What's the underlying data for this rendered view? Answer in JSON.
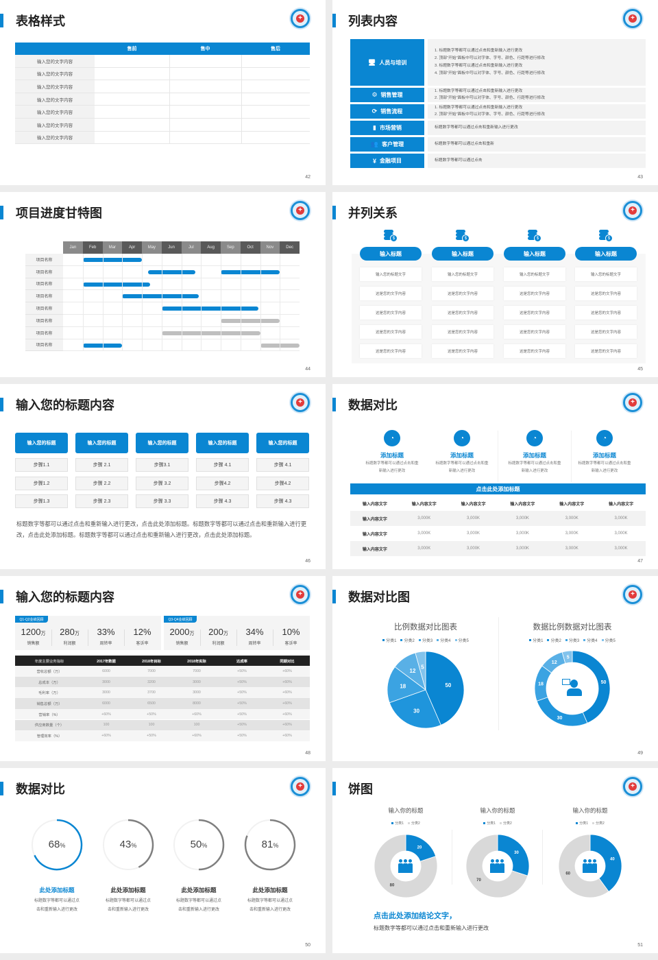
{
  "colors": {
    "accent": "#0a86d2",
    "gray": "#d9d9d9",
    "dark": "#222222"
  },
  "s42": {
    "title": "表格样式",
    "page": "42",
    "headers": [
      "",
      "售前",
      "售中",
      "售后"
    ],
    "rows": [
      "输入您的文字内容",
      "输入您的文字内容",
      "输入您的文字内容",
      "输入您的文字内容",
      "输入您的文字内容",
      "输入您的文字内容",
      "输入您的文字内容"
    ]
  },
  "s43": {
    "title": "列表内容",
    "page": "43",
    "items": [
      {
        "label": "人员与培训",
        "icon": "training-icon",
        "lines": [
          "1.  标题数字等都可以通过点击和重新输入进行更改",
          "2.  顶部“开始”面板中可以对字体、字号、颜色、行距等进行修改",
          "3.  标题数字等都可以通过点击和重新输入进行更改",
          "4.  顶部“开始”面板中可以对字体、字号、颜色、行距等进行修改"
        ]
      },
      {
        "label": "销售管理",
        "icon": "user-gear-icon",
        "lines": [
          "1.  标题数字等都可以通过点击和重新输入进行更改",
          "2.  顶部“开始”面板中可以对字体、字号、颜色、行距等进行修改"
        ]
      },
      {
        "label": "销售流程",
        "icon": "cycle-icon",
        "lines": [
          "1.  标题数字等都可以通过点击和重新输入进行更改",
          "2.  顶部“开始”面板中可以对字体、字号、颜色、行距等进行修改"
        ]
      },
      {
        "label": "市场营销",
        "icon": "bar-chart-icon",
        "lines": [
          "标题数字等都可以通过点击和重新输入进行更改"
        ]
      },
      {
        "label": "客户管理",
        "icon": "users-icon",
        "lines": [
          "标题数字等都可以通过点击和重新"
        ]
      },
      {
        "label": "金融项目",
        "icon": "money-hand-icon",
        "lines": [
          "标题数字等都可以通过点击"
        ]
      }
    ]
  },
  "s44": {
    "title": "项目进度甘特图",
    "page": "44",
    "months": [
      "Jan",
      "Feb",
      "Mar",
      "Apr",
      "May",
      "Jun",
      "Jul",
      "Aug",
      "Sep",
      "Oct",
      "Nov",
      "Dec"
    ],
    "rows": [
      {
        "label": "项目名称",
        "bars": [
          {
            "start": 1,
            "end": 4,
            "status": "active"
          }
        ]
      },
      {
        "label": "项目名称",
        "bars": [
          {
            "start": 4.3,
            "end": 6.7,
            "status": "active"
          },
          {
            "start": 8,
            "end": 11,
            "status": "active"
          }
        ]
      },
      {
        "label": "项目名称",
        "bars": [
          {
            "start": 1,
            "end": 4.4,
            "status": "active"
          }
        ]
      },
      {
        "label": "项目名称",
        "bars": [
          {
            "start": 3,
            "end": 6.9,
            "status": "active"
          }
        ]
      },
      {
        "label": "项目名称",
        "bars": [
          {
            "start": 5,
            "end": 9.9,
            "status": "active"
          }
        ]
      },
      {
        "label": "项目名称",
        "bars": [
          {
            "start": 8,
            "end": 11,
            "status": "planned"
          }
        ]
      },
      {
        "label": "项目名称",
        "bars": [
          {
            "start": 5,
            "end": 10,
            "status": "planned"
          }
        ]
      },
      {
        "label": "项目名称",
        "bars": [
          {
            "start": 1,
            "end": 3,
            "status": "active"
          },
          {
            "start": 10,
            "end": 12,
            "status": "planned"
          }
        ]
      }
    ]
  },
  "s45": {
    "title": "并列关系",
    "page": "45",
    "columns": [
      {
        "title": "输入标题",
        "cells": [
          "输入您的标题文字",
          "这是您的文字内容",
          "这是您的文字内容",
          "这是您的文字内容",
          "这是您的文字内容"
        ]
      },
      {
        "title": "输入标题",
        "cells": [
          "输入您的标题文字",
          "这是您的文字内容",
          "这是您的文字内容",
          "这是您的文字内容",
          "这是您的文字内容"
        ]
      },
      {
        "title": "输入标题",
        "cells": [
          "输入您的标题文字",
          "这是您的文字内容",
          "这是您的文字内容",
          "这是您的文字内容",
          "这是您的文字内容"
        ]
      },
      {
        "title": "输入标题",
        "cells": [
          "输入您的标题文字",
          "这是您的文字内容",
          "这是您的文字内容",
          "这是您的文字内容",
          "这是您的文字内容"
        ]
      }
    ]
  },
  "s46": {
    "title": "输入您的标题内容",
    "page": "46",
    "columns": [
      {
        "title": "输入您的标题",
        "steps": [
          "步骤1.1",
          "步骤1.2",
          "步骤1.3"
        ]
      },
      {
        "title": "输入您的标题",
        "steps": [
          "步骤 2.1",
          "步骤 2.2",
          "步骤 2.3"
        ]
      },
      {
        "title": "输入您的标题",
        "steps": [
          "步骤3.1",
          "步骤 3.2",
          "步骤 3.3"
        ]
      },
      {
        "title": "输入您的标题",
        "steps": [
          "步骤 4.1",
          "步骤4.2",
          "步骤 4.3"
        ]
      },
      {
        "title": "输入您的标题",
        "steps": [
          "步骤 4.1",
          "步骤4.2",
          "步骤 4.3"
        ]
      }
    ],
    "paragraph": "标题数字等都可以通过点击和重新输入进行更改，点击此处添加标题。标题数字等都可以通过点击和重新输入进行更改，点击此处添加标题。标题数字等都可以通过点击和重新输入进行更改，点击此处添加标题。"
  },
  "s47": {
    "title": "数据对比",
    "page": "47",
    "items": [
      {
        "title": "添加标题",
        "desc": "标题数字等都可以通过点击和重新输入进行更改"
      },
      {
        "title": "添加标题",
        "desc": "标题数字等都可以通过点击和重新输入进行更改"
      },
      {
        "title": "添加标题",
        "desc": "标题数字等都可以通过点击和重新输入进行更改"
      },
      {
        "title": "添加标题",
        "desc": "标题数字等都可以通过点击和重新输入进行更改"
      }
    ],
    "bar_title": "点击此处添加标题",
    "headers": [
      "输入内容文字",
      "输入内容文字",
      "输入内容文字",
      "输入内容文字",
      "输入内容文字",
      "输入内容文字"
    ],
    "rows": [
      [
        "输入内容文字",
        "3,000K",
        "3,000K",
        "3,000K",
        "3,000K",
        "3,000K"
      ],
      [
        "输入内容文字",
        "3,000K",
        "3,000K",
        "3,000K",
        "3,000K",
        "3,000K"
      ],
      [
        "输入内容文字",
        "3,000K",
        "3,000K",
        "3,000K",
        "3,000K",
        "3,000K"
      ]
    ]
  },
  "s48": {
    "title": "输入您的标题内容",
    "page": "48",
    "panels": [
      {
        "tag": "Q1-Q2业绩回顾",
        "stats": [
          {
            "value": "1200",
            "unit": "万",
            "label": "销售额"
          },
          {
            "value": "280",
            "unit": "万",
            "label": "利润额"
          },
          {
            "value": "33%",
            "unit": "",
            "label": "周转率"
          },
          {
            "value": "12%",
            "unit": "",
            "label": "客诉率"
          }
        ]
      },
      {
        "tag": "Q3-Q4业绩回顾",
        "stats": [
          {
            "value": "2000",
            "unit": "万",
            "label": "销售额"
          },
          {
            "value": "200",
            "unit": "万",
            "label": "利润额"
          },
          {
            "value": "34%",
            "unit": "",
            "label": "周转率"
          },
          {
            "value": "10%",
            "unit": "",
            "label": "客诉率"
          }
        ]
      }
    ],
    "headers": [
      "年度主要业务指标",
      "2017年数据",
      "2018年目标",
      "2018年实际",
      "达成率",
      "同期对比"
    ],
    "rows": [
      [
        "营收总额（万）",
        "6000",
        "7000",
        "7000",
        "+50%",
        "+60%"
      ],
      [
        "总成本（万）",
        "3000",
        "3200",
        "3000",
        "+50%",
        "+60%"
      ],
      [
        "毛利率（万）",
        "3000",
        "3700",
        "3000",
        "+50%",
        "+60%"
      ],
      [
        "销售总额（万）",
        "6000",
        "6500",
        "8000",
        "+50%",
        "+60%"
      ],
      [
        "营销率（%）",
        "+60%",
        "+50%",
        "+60%",
        "+50%",
        "+60%"
      ],
      [
        "供应商数量（个）",
        "100",
        "100",
        "100",
        "+50%",
        "+60%"
      ],
      [
        "管理效率（%）",
        "+60%",
        "+50%",
        "+60%",
        "+50%",
        "+60%"
      ]
    ]
  },
  "s49": {
    "title": "数据对比图",
    "page": "49"
  },
  "s50": {
    "title": "数据对比",
    "page": "50",
    "rings": [
      {
        "value": 68,
        "label": "68",
        "title": "此处添加标题",
        "desc": [
          "标题数字等都可以通过点",
          "击和重新输入进行更改"
        ],
        "highlight": true
      },
      {
        "value": 43,
        "label": "43",
        "title": "此处添加标题",
        "desc": [
          "标题数字等都可以通过点",
          "击和重新输入进行更改"
        ],
        "highlight": false
      },
      {
        "value": 50,
        "label": "50",
        "title": "此处添加标题",
        "desc": [
          "标题数字等都可以通过点",
          "击和重新输入进行更改"
        ],
        "highlight": false
      },
      {
        "value": 81,
        "label": "81",
        "title": "此处添加标题",
        "desc": [
          "标题数字等都可以通过点",
          "击和重新输入进行更改"
        ],
        "highlight": false
      }
    ],
    "unit": "%"
  },
  "s51": {
    "title": "饼图",
    "page": "51",
    "conclusion_title": "点击此处添加结论文字，",
    "conclusion_text": "标题数字等都可以通过点击和重新输入进行更改"
  },
  "chart_data": [
    {
      "type": "pie",
      "title": "比例数据对比图表",
      "legend": "top",
      "categories": [
        "分类1",
        "分类2",
        "分类3",
        "分类4",
        "分类5"
      ],
      "values": [
        50,
        30,
        18,
        12,
        5
      ],
      "colors": [
        "#0a86d2",
        "#1f95dc",
        "#3ba3e2",
        "#59b0e6",
        "#82c3ec"
      ]
    },
    {
      "type": "pie",
      "variant": "donut",
      "title": "数据比例数据对比图表",
      "legend": "top",
      "categories": [
        "分类1",
        "分类2",
        "分类3",
        "分类4",
        "分类5"
      ],
      "values": [
        50,
        30,
        18,
        12,
        5
      ],
      "colors": [
        "#0a86d2",
        "#1f95dc",
        "#3ba3e2",
        "#59b0e6",
        "#82c3ec"
      ]
    },
    {
      "type": "pie",
      "variant": "donut",
      "title": "输入你的标题",
      "legend": "top",
      "categories": [
        "分类1",
        "分类2"
      ],
      "values": [
        20,
        80
      ],
      "colors": [
        "#0a86d2",
        "#d9d9d9"
      ]
    },
    {
      "type": "pie",
      "variant": "donut",
      "title": "输入你的标题",
      "legend": "top",
      "categories": [
        "分类1",
        "分类2"
      ],
      "values": [
        30,
        70
      ],
      "colors": [
        "#0a86d2",
        "#d9d9d9"
      ]
    },
    {
      "type": "pie",
      "variant": "donut",
      "title": "输入你的标题",
      "legend": "top",
      "categories": [
        "分类1",
        "分类2"
      ],
      "values": [
        40,
        60
      ],
      "colors": [
        "#0a86d2",
        "#d9d9d9"
      ]
    }
  ]
}
